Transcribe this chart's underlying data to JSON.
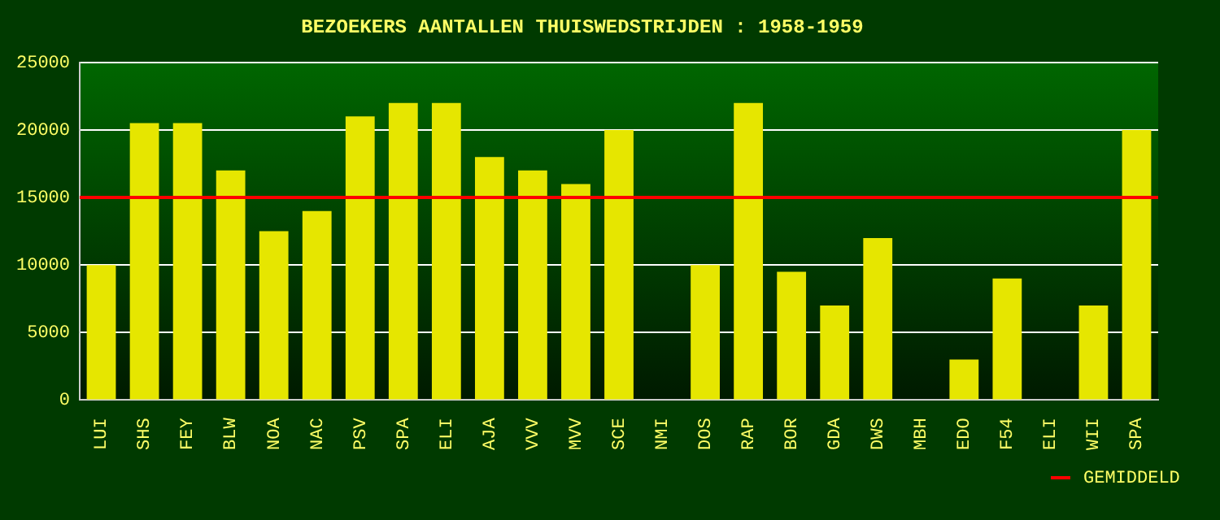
{
  "chart_data": {
    "type": "bar",
    "title": "BEZOEKERS AANTALLEN THUISWEDSTRIJDEN : 1958-1959",
    "categories": [
      "LUI",
      "SHS",
      "FEY",
      "BLW",
      "NOA",
      "NAC",
      "PSV",
      "SPA",
      "ELI",
      "AJA",
      "VVV",
      "MVV",
      "SCE",
      "NMI",
      "DOS",
      "RAP",
      "BOR",
      "GDA",
      "DWS",
      "MBH",
      "EDO",
      "F54",
      "ELI",
      "WII",
      "SPA"
    ],
    "values": [
      10000,
      20500,
      20500,
      17000,
      12500,
      14000,
      21000,
      22000,
      22000,
      18000,
      17000,
      16000,
      20000,
      null,
      10000,
      22000,
      9500,
      7000,
      12000,
      null,
      3000,
      9000,
      null,
      7000,
      20000
    ],
    "color": "#e6e600",
    "ylim": [
      0,
      25000
    ],
    "yticks": [
      0,
      5000,
      10000,
      15000,
      20000,
      25000
    ],
    "grid": "y",
    "ref_lines": [
      {
        "axis": "y",
        "value": 15000,
        "label": "GEMIDDELD",
        "color": "#ff0000"
      }
    ]
  }
}
